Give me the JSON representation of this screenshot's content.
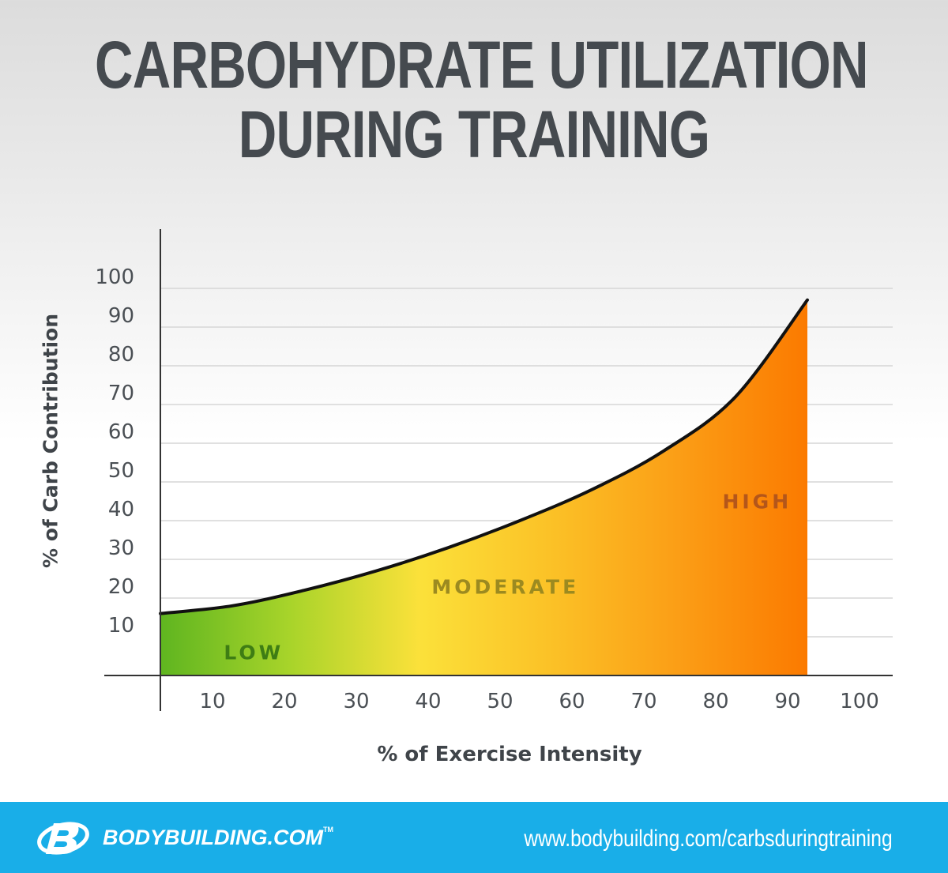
{
  "title": {
    "line1": "CARBOHYDRATE UTILIZATION",
    "line2": "DURING TRAINING"
  },
  "chart_data": {
    "type": "area",
    "title": "CARBOHYDRATE UTILIZATION DURING TRAINING",
    "xlabel": "% of Exercise Intensity",
    "ylabel": "% of Carb Contribution",
    "xlim": [
      0,
      100
    ],
    "ylim": [
      0,
      100
    ],
    "x_ticks": [
      "10",
      "20",
      "30",
      "40",
      "50",
      "60",
      "70",
      "80",
      "90",
      "100"
    ],
    "y_ticks": [
      "10",
      "20",
      "30",
      "40",
      "50",
      "60",
      "70",
      "80",
      "90",
      "100"
    ],
    "grid": true,
    "series": [
      {
        "x": [
          0,
          10,
          20,
          30,
          40,
          50,
          60,
          70,
          80,
          90
        ],
        "y": [
          16,
          18,
          22,
          27,
          33,
          40,
          48,
          58,
          72,
          97
        ]
      }
    ],
    "zones": [
      {
        "label": "LOW",
        "x": 13,
        "y": 6,
        "color": "#3e7d14"
      },
      {
        "label": "MODERATE",
        "x": 48,
        "y": 23,
        "color": "#9c8a20"
      },
      {
        "label": "HIGH",
        "x": 83,
        "y": 45,
        "color": "#b4561a"
      }
    ],
    "gradient_colors": [
      "#5fb520",
      "#a8d42a",
      "#fbe13a",
      "#fbc227",
      "#fb9e16",
      "#fb7a00"
    ]
  },
  "footer": {
    "brand": "BODYBUILDING.COM",
    "trademark": "TM",
    "url": "www.bodybuilding.com/carbsduringtraining",
    "background": "#19aee8"
  }
}
